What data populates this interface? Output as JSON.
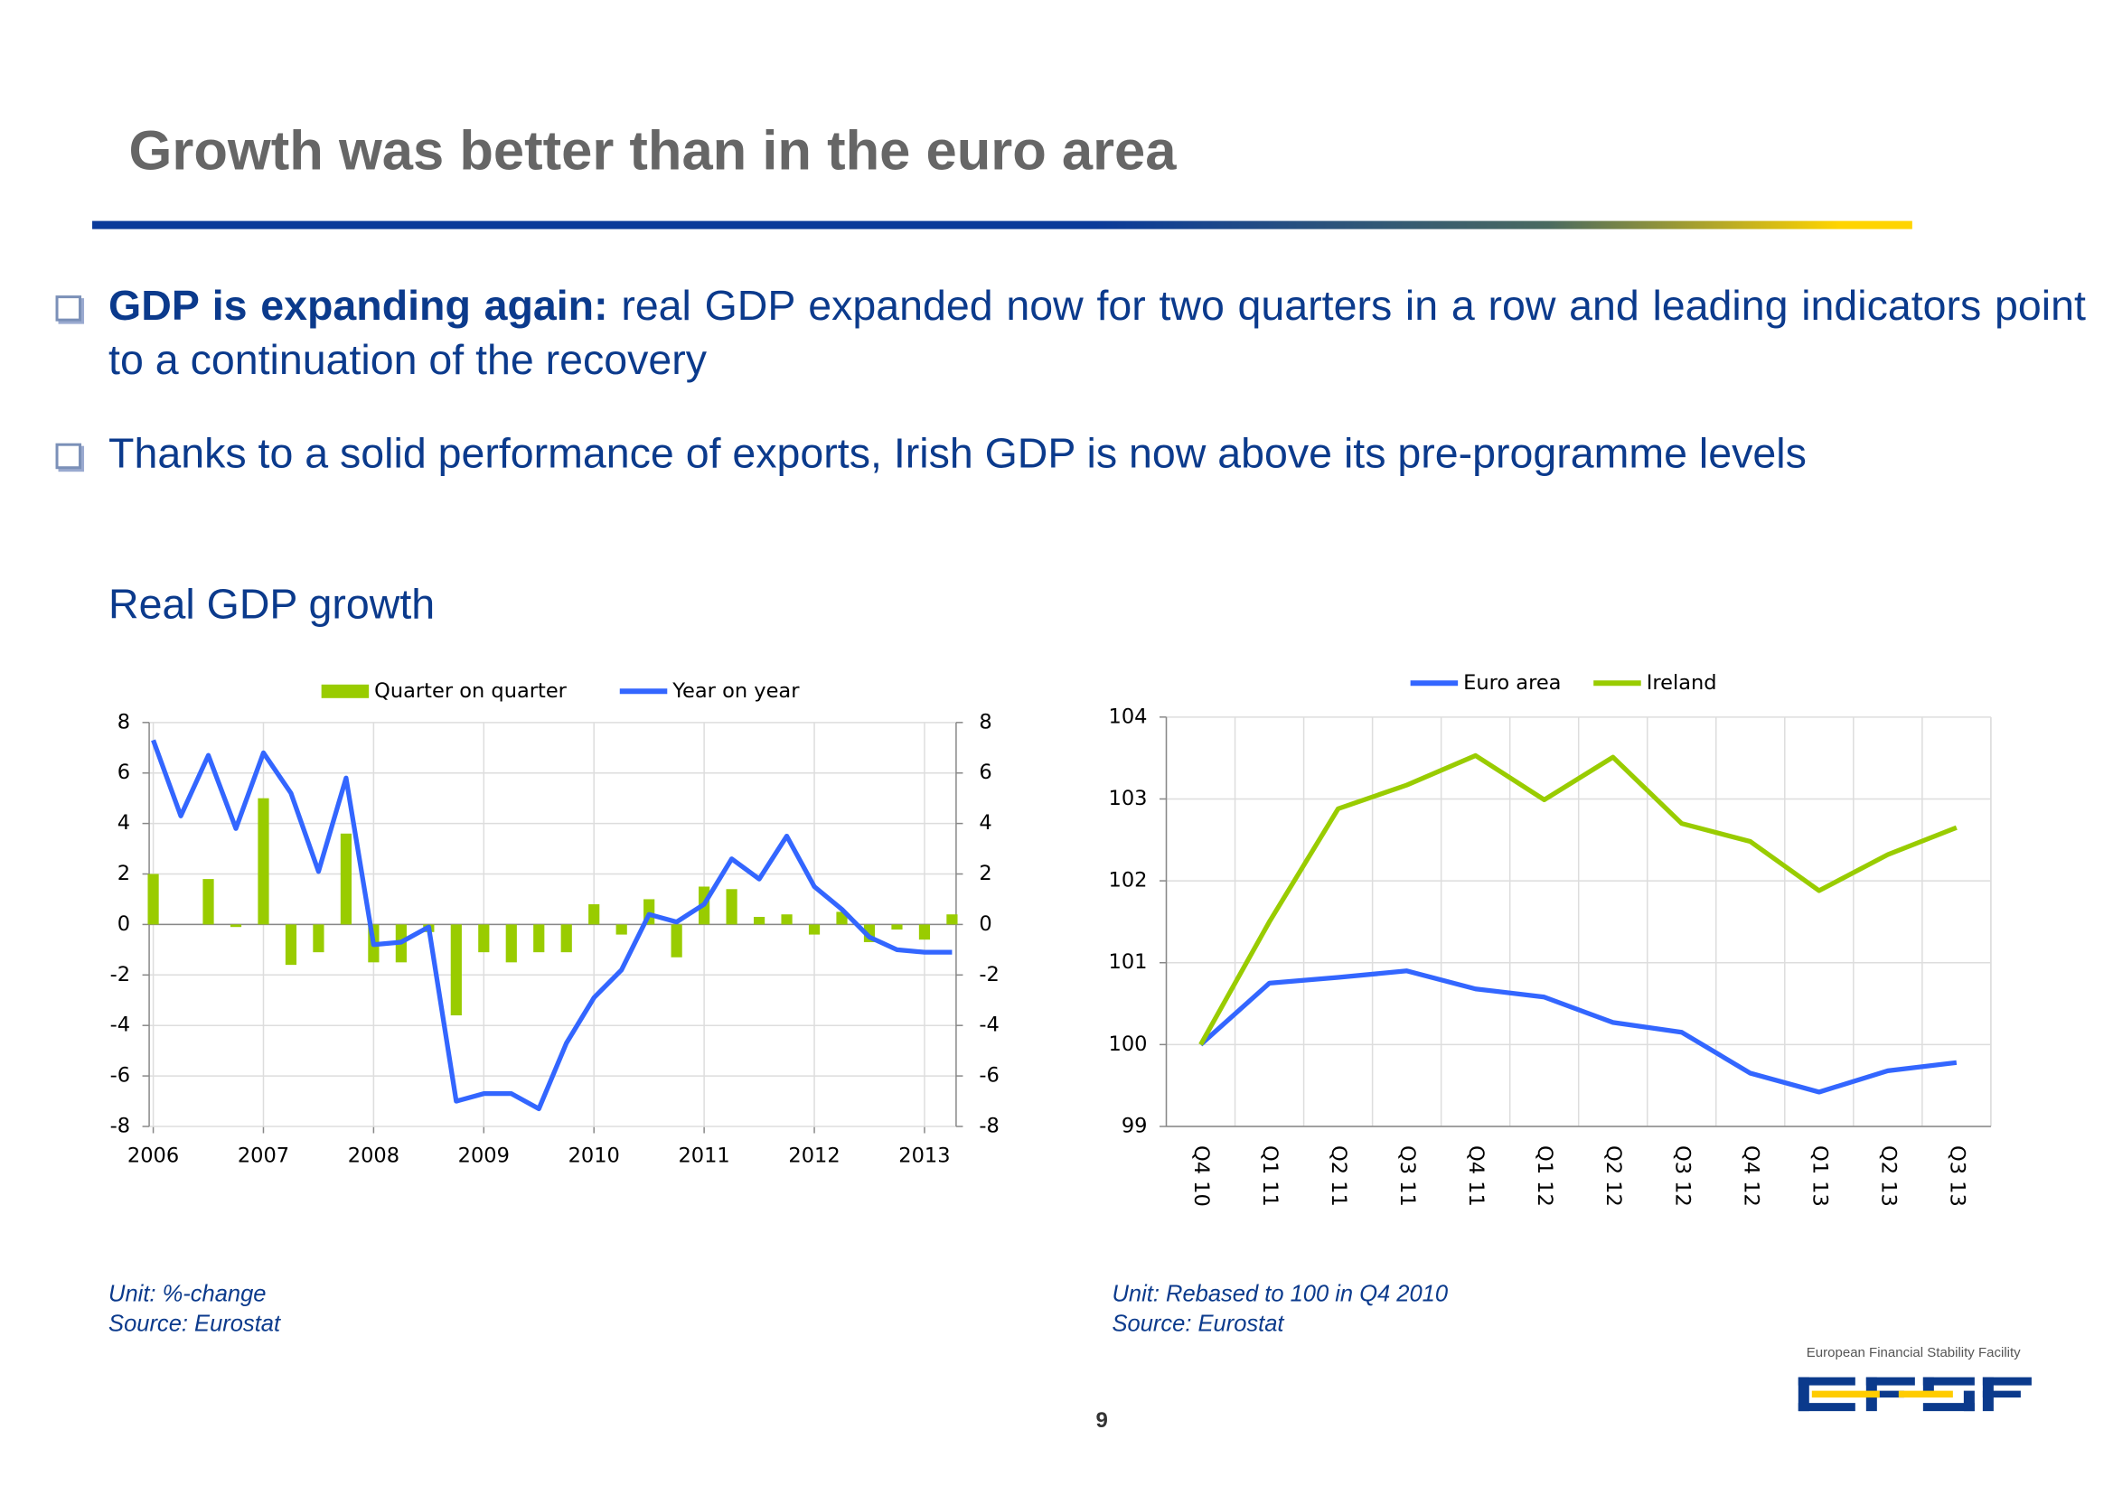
{
  "slide": {
    "title": "Growth was better than in the euro area",
    "bullets": [
      {
        "bold": "GDP is expanding again:",
        "text": "real GDP expanded now for two quarters in a row and leading indicators point to a continuation of the recovery"
      },
      {
        "text": "Thanks to a solid performance of exports, Irish GDP is now above its pre-programme levels"
      }
    ],
    "section_title": "Real GDP growth",
    "page_number": 9,
    "logo_text": "European Financial Stability Facility"
  },
  "chart_data": [
    {
      "type": "bar",
      "x": [
        2006,
        2006.25,
        2006.5,
        2006.75,
        2007,
        2007.25,
        2007.5,
        2007.75,
        2008,
        2008.25,
        2008.5,
        2008.75,
        2009,
        2009.25,
        2009.5,
        2009.75,
        2010,
        2010.25,
        2010.5,
        2010.75,
        2011,
        2011.25,
        2011.5,
        2011.75,
        2012,
        2012.25,
        2012.5,
        2012.75,
        2013,
        2013.25
      ],
      "series": [
        {
          "name": "Quarter on quarter",
          "type": "bar",
          "color": "#99cc00",
          "values": [
            2.0,
            0,
            1.8,
            -0.1,
            5.0,
            -1.6,
            -1.1,
            3.6,
            -1.5,
            -1.5,
            -0.3,
            -3.6,
            -1.1,
            -1.5,
            -1.1,
            -1.1,
            0.8,
            -0.4,
            1.0,
            -1.3,
            1.5,
            1.4,
            0.3,
            0.4,
            -0.4,
            0.5,
            -0.7,
            -0.2,
            -0.6,
            0.4
          ]
        },
        {
          "name": "Year on year",
          "type": "line",
          "color": "#3366ff",
          "values": [
            7.3,
            4.3,
            6.7,
            3.8,
            6.8,
            5.2,
            2.1,
            5.8,
            -0.8,
            -0.7,
            -0.1,
            -7.0,
            -6.7,
            -6.7,
            -7.3,
            -4.7,
            -2.9,
            -1.8,
            0.4,
            0.1,
            0.8,
            2.6,
            1.8,
            3.5,
            1.5,
            0.6,
            -0.5,
            -1.0,
            -1.1,
            -1.1
          ]
        }
      ],
      "xlim": [
        2006,
        2013.25
      ],
      "xticks": [
        2006,
        2007,
        2008,
        2009,
        2010,
        2011,
        2012,
        2013
      ],
      "ylim": [
        -8,
        8
      ],
      "yticks": [
        -8,
        -6,
        -4,
        -2,
        0,
        2,
        4,
        6,
        8
      ],
      "y2lim": [
        -8,
        8
      ],
      "y2ticks": [
        -8,
        -6,
        -4,
        -2,
        0,
        2,
        4,
        6,
        8
      ],
      "grid": true,
      "legend": "top",
      "notes": [
        "Unit: %-change",
        "Source: Eurostat"
      ]
    },
    {
      "type": "line",
      "categories": [
        "Q4 10",
        "Q1 11",
        "Q2 11",
        "Q3 11",
        "Q4 11",
        "Q1 12",
        "Q2 12",
        "Q3 12",
        "Q4 12",
        "Q1 13",
        "Q2 13",
        "Q3 13"
      ],
      "series": [
        {
          "name": "Euro area",
          "color": "#3366ff",
          "values": [
            100,
            100.75,
            100.82,
            100.9,
            100.68,
            100.58,
            100.27,
            100.15,
            99.65,
            99.42,
            99.68,
            99.78
          ]
        },
        {
          "name": "Ireland",
          "color": "#99cc00",
          "values": [
            100,
            101.5,
            102.88,
            103.17,
            103.53,
            102.99,
            103.51,
            102.7,
            102.48,
            101.88,
            102.32,
            102.65
          ]
        }
      ],
      "ylim": [
        99,
        104
      ],
      "yticks": [
        99,
        100,
        101,
        102,
        103,
        104
      ],
      "grid": true,
      "legend": "top",
      "notes": [
        "Unit: Rebased to 100 in Q4 2010",
        "Source: Eurostat"
      ]
    }
  ]
}
